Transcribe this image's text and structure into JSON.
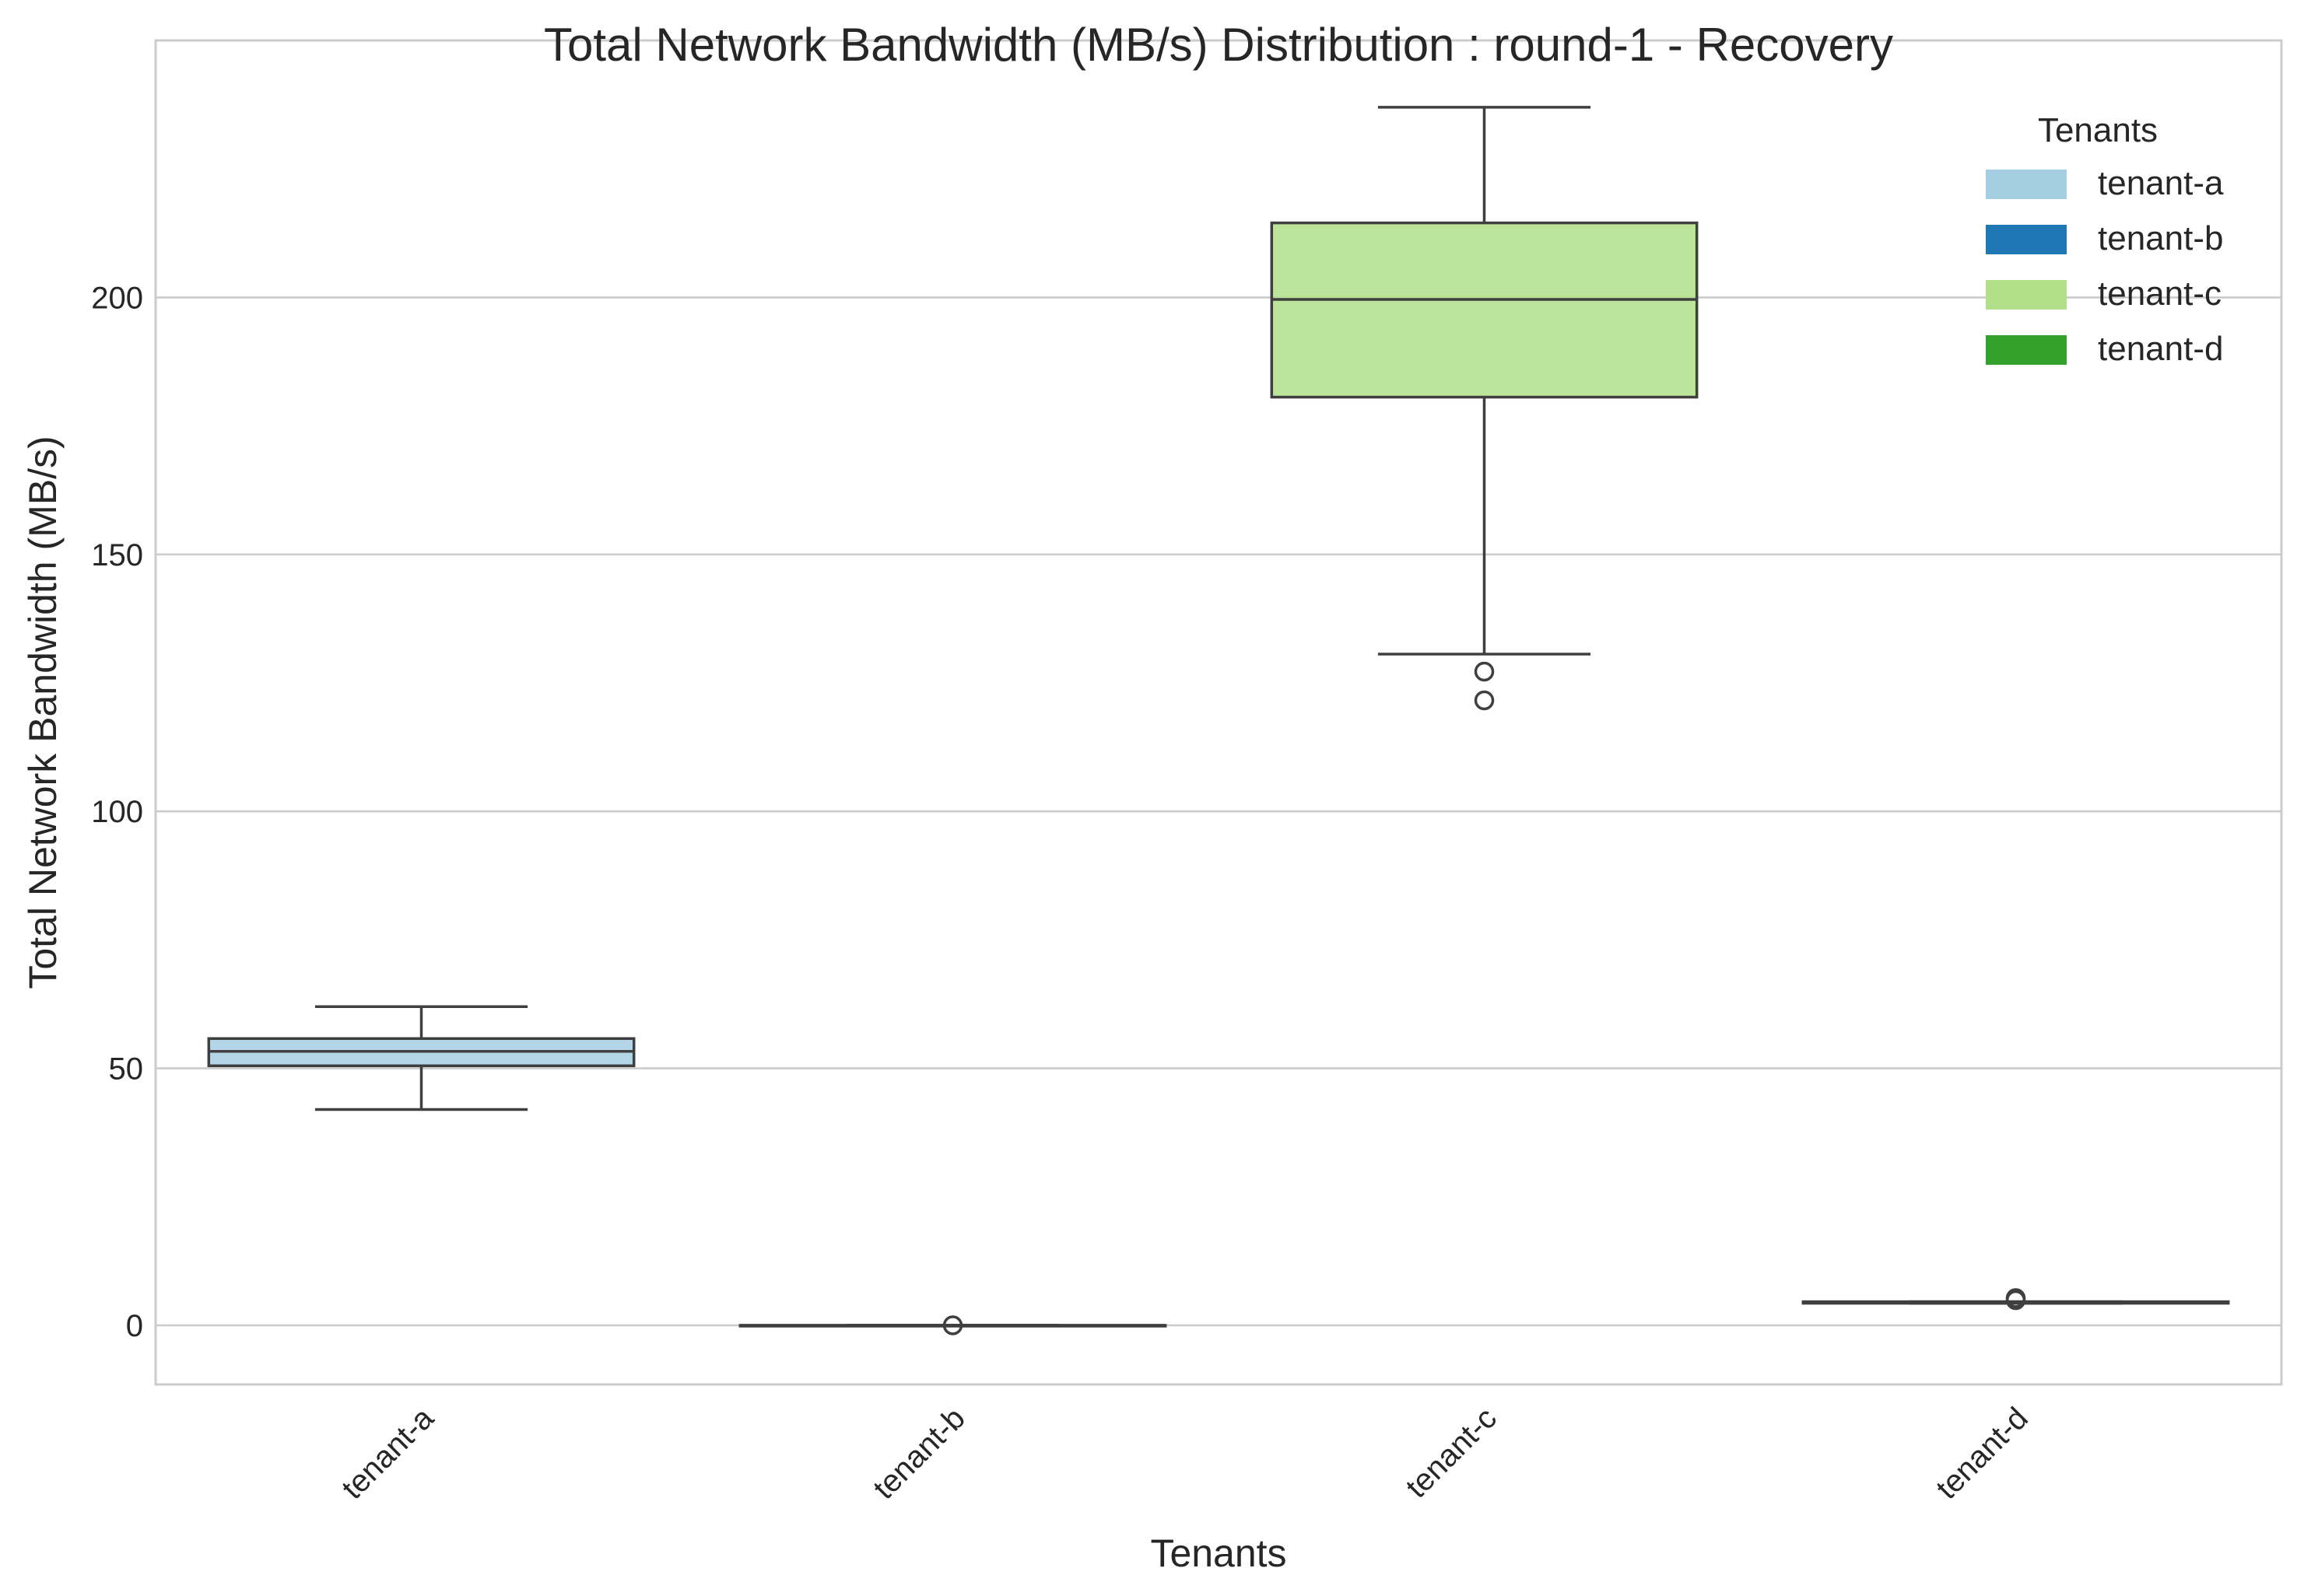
{
  "chart_data": {
    "type": "box",
    "title": "Total Network Bandwidth (MB/s) Distribution : round-1 - Recovery",
    "xlabel": "Tenants",
    "ylabel": "Total Network Bandwidth (MB/s)",
    "ylim": [
      -11.5,
      250
    ],
    "yticks": [
      0,
      50,
      100,
      150,
      200
    ],
    "grid": "horizontal",
    "legend": {
      "title": "Tenants",
      "position": "top-right"
    },
    "categories": [
      "tenant-a",
      "tenant-b",
      "tenant-c",
      "tenant-d"
    ],
    "series": [
      {
        "name": "tenant-a",
        "color": "#a6cee3",
        "whisker_low": 42,
        "q1": 50.5,
        "median": 53.3,
        "q3": 55.8,
        "whisker_high": 62,
        "outliers": []
      },
      {
        "name": "tenant-b",
        "color": "#1f78b4",
        "whisker_low": 0,
        "q1": 0,
        "median": 0,
        "q3": 0,
        "whisker_high": 0,
        "outliers": [
          0
        ]
      },
      {
        "name": "tenant-c",
        "color": "#b2df8a",
        "whisker_low": 130.6,
        "q1": 180.6,
        "median": 199.6,
        "q3": 214.5,
        "whisker_high": 237,
        "outliers": [
          127.2,
          121.6
        ]
      },
      {
        "name": "tenant-d",
        "color": "#33a02c",
        "whisker_low": 4.3,
        "q1": 4.3,
        "median": 4.4,
        "q3": 4.6,
        "whisker_high": 4.6,
        "outliers": [
          5.3,
          4.9
        ]
      }
    ]
  }
}
